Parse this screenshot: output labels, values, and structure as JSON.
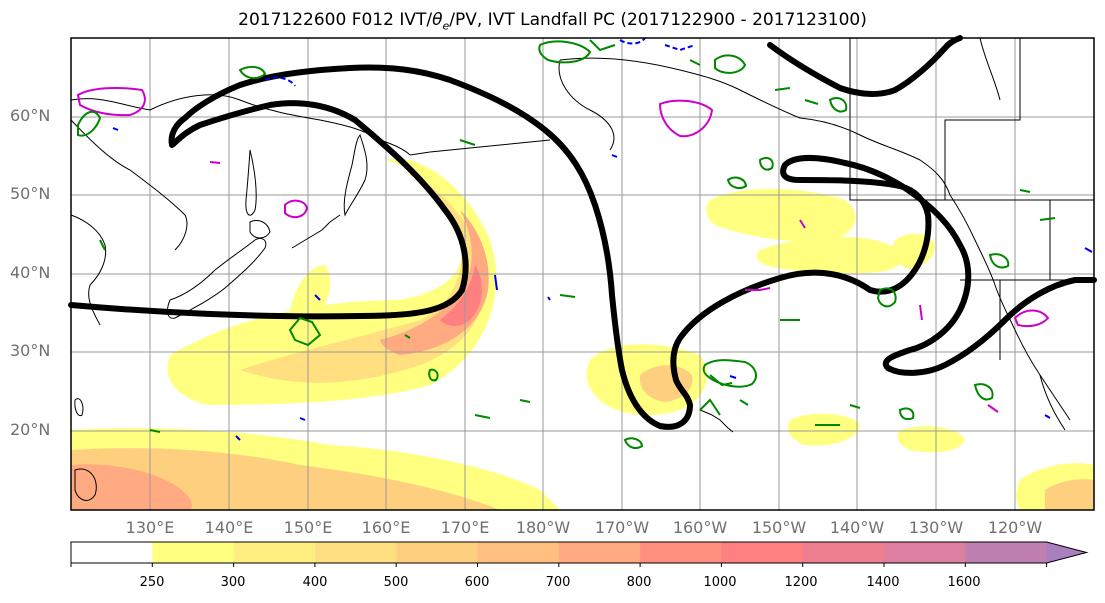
{
  "title_main": "2017122600 F012 IVT/",
  "title_theta": "θ",
  "title_sub": "e",
  "title_rest": "/PV, IVT Landfall PC (2017122900 - 2017123100)",
  "lat_labels": [
    "60°N",
    "50°N",
    "40°N",
    "30°N",
    "20°N"
  ],
  "lon_labels": [
    "130°E",
    "140°E",
    "150°E",
    "160°E",
    "170°E",
    "180°W",
    "170°W",
    "160°W",
    "150°W",
    "140°W",
    "130°W",
    "120°W"
  ],
  "colorbar": {
    "ticks": [
      "250",
      "300",
      "400",
      "500",
      "600",
      "700",
      "800",
      "1000",
      "1200",
      "1400",
      "1600"
    ],
    "colors": [
      "#ffff80",
      "#ffef80",
      "#ffdf80",
      "#ffcf80",
      "#ffbf80",
      "#ffaa80",
      "#ff9080",
      "#ff8080",
      "#ee7f90",
      "#dd7fa0",
      "#bf7fb0",
      "#aa7fc0"
    ]
  },
  "colors": {
    "ivt_contour": "#000000",
    "pv_positive": "#cc00cc",
    "pv_green": "#008800",
    "pv_blue": "#0000ee",
    "grid": "#999999"
  }
}
